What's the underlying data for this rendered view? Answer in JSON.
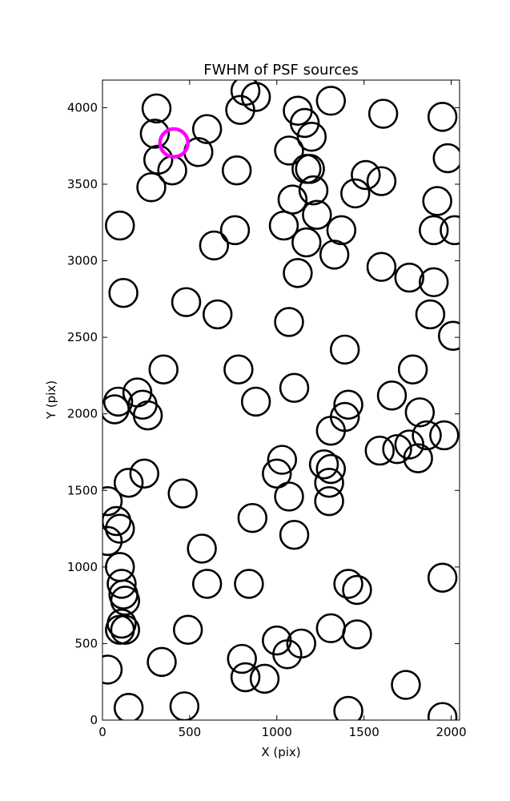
{
  "chart_data": {
    "type": "scatter",
    "title": "FWHM of PSF sources",
    "xlabel": "X (pix)",
    "ylabel": "Y (pix)",
    "xlim": [
      0,
      2048
    ],
    "ylim": [
      0,
      4180
    ],
    "xticks": [
      0,
      500,
      1000,
      1500,
      2000
    ],
    "yticks": [
      0,
      500,
      1000,
      1500,
      2000,
      2500,
      3000,
      3500,
      4000
    ],
    "grid": false,
    "legend": "none",
    "marker": "circle",
    "marker_radius_pix": 80,
    "colors": {
      "sources": "#000000",
      "highlight": "#ff00ff"
    },
    "series": [
      {
        "points": [
          [
            310,
            3995
          ],
          [
            300,
            3830
          ],
          [
            320,
            3660
          ],
          [
            280,
            3480
          ],
          [
            400,
            3590
          ],
          [
            550,
            3710
          ],
          [
            600,
            3860
          ],
          [
            790,
            3985
          ],
          [
            820,
            4110
          ],
          [
            880,
            4070
          ],
          [
            770,
            3590
          ],
          [
            1120,
            3980
          ],
          [
            1160,
            3900
          ],
          [
            1200,
            3810
          ],
          [
            1310,
            4045
          ],
          [
            1070,
            3720
          ],
          [
            1170,
            3600
          ],
          [
            1190,
            3600
          ],
          [
            1210,
            3460
          ],
          [
            1090,
            3400
          ],
          [
            1230,
            3300
          ],
          [
            1040,
            3230
          ],
          [
            1170,
            3120
          ],
          [
            1330,
            3040
          ],
          [
            1370,
            3200
          ],
          [
            1120,
            2920
          ],
          [
            1450,
            3440
          ],
          [
            1510,
            3560
          ],
          [
            1600,
            3520
          ],
          [
            1610,
            3960
          ],
          [
            1950,
            3940
          ],
          [
            1980,
            3670
          ],
          [
            1920,
            3390
          ],
          [
            1900,
            3200
          ],
          [
            2020,
            3200
          ],
          [
            1600,
            2960
          ],
          [
            1760,
            2890
          ],
          [
            1900,
            2860
          ],
          [
            1880,
            2650
          ],
          [
            2010,
            2510
          ],
          [
            100,
            3230
          ],
          [
            120,
            2790
          ],
          [
            640,
            3100
          ],
          [
            760,
            3200
          ],
          [
            480,
            2730
          ],
          [
            660,
            2650
          ],
          [
            1070,
            2600
          ],
          [
            1390,
            2420
          ],
          [
            780,
            2290
          ],
          [
            880,
            2080
          ],
          [
            1100,
            2170
          ],
          [
            350,
            2290
          ],
          [
            200,
            2140
          ],
          [
            230,
            2060
          ],
          [
            260,
            1990
          ],
          [
            90,
            2080
          ],
          [
            70,
            2030
          ],
          [
            1410,
            2060
          ],
          [
            1390,
            1980
          ],
          [
            1310,
            1890
          ],
          [
            1660,
            2120
          ],
          [
            1780,
            2290
          ],
          [
            1820,
            2010
          ],
          [
            1860,
            1860
          ],
          [
            1960,
            1860
          ],
          [
            1760,
            1800
          ],
          [
            1690,
            1770
          ],
          [
            1590,
            1760
          ],
          [
            1810,
            1710
          ],
          [
            1030,
            1700
          ],
          [
            1000,
            1610
          ],
          [
            1270,
            1670
          ],
          [
            1310,
            1640
          ],
          [
            1300,
            1550
          ],
          [
            1300,
            1430
          ],
          [
            1070,
            1460
          ],
          [
            1100,
            1210
          ],
          [
            240,
            1610
          ],
          [
            150,
            1550
          ],
          [
            460,
            1480
          ],
          [
            30,
            1430
          ],
          [
            80,
            1300
          ],
          [
            100,
            1250
          ],
          [
            30,
            1170
          ],
          [
            860,
            1320
          ],
          [
            570,
            1120
          ],
          [
            600,
            890
          ],
          [
            840,
            890
          ],
          [
            100,
            1000
          ],
          [
            110,
            890
          ],
          [
            120,
            820
          ],
          [
            130,
            780
          ],
          [
            110,
            630
          ],
          [
            100,
            590
          ],
          [
            130,
            590
          ],
          [
            490,
            590
          ],
          [
            340,
            380
          ],
          [
            30,
            330
          ],
          [
            150,
            80
          ],
          [
            470,
            90
          ],
          [
            800,
            400
          ],
          [
            820,
            280
          ],
          [
            930,
            270
          ],
          [
            1000,
            520
          ],
          [
            1060,
            430
          ],
          [
            1140,
            500
          ],
          [
            1310,
            600
          ],
          [
            1410,
            890
          ],
          [
            1460,
            850
          ],
          [
            1460,
            560
          ],
          [
            1740,
            230
          ],
          [
            1410,
            60
          ],
          [
            1950,
            930
          ],
          [
            1950,
            20
          ]
        ]
      },
      {
        "points": [
          [
            410,
            3770
          ]
        ]
      }
    ]
  }
}
